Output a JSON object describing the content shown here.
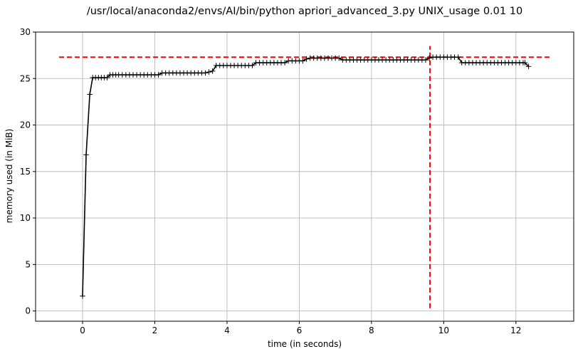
{
  "chart_data": {
    "type": "line",
    "title": "/usr/local/anaconda2/envs/AI/bin/python apriori_advanced_3.py UNIX_usage 0.01 10",
    "xlabel": "time (in seconds)",
    "ylabel": "memory used (in MiB)",
    "xlim": [
      -1.3,
      13.6
    ],
    "ylim": [
      -1.1,
      30
    ],
    "xticks": [
      0,
      2,
      4,
      6,
      8,
      10,
      12
    ],
    "yticks": [
      0,
      5,
      10,
      15,
      20,
      25,
      30
    ],
    "grid": true,
    "series": [
      {
        "marker": "+",
        "color": "#000000",
        "x": [
          0.0,
          0.1,
          0.2,
          0.28,
          0.36,
          0.44,
          0.52,
          0.6,
          0.68,
          0.76,
          0.84,
          0.92,
          1.0,
          1.1,
          1.2,
          1.3,
          1.4,
          1.5,
          1.6,
          1.7,
          1.8,
          1.9,
          2.0,
          2.1,
          2.2,
          2.3,
          2.4,
          2.5,
          2.6,
          2.7,
          2.8,
          2.9,
          3.0,
          3.1,
          3.2,
          3.3,
          3.4,
          3.5,
          3.6,
          3.7,
          3.8,
          3.9,
          4.0,
          4.1,
          4.2,
          4.3,
          4.4,
          4.5,
          4.6,
          4.7,
          4.8,
          4.9,
          5.0,
          5.1,
          5.2,
          5.3,
          5.4,
          5.5,
          5.6,
          5.7,
          5.8,
          5.9,
          6.0,
          6.1,
          6.2,
          6.3,
          6.4,
          6.5,
          6.6,
          6.7,
          6.8,
          6.9,
          7.0,
          7.1,
          7.2,
          7.3,
          7.4,
          7.5,
          7.6,
          7.7,
          7.8,
          7.9,
          8.0,
          8.1,
          8.2,
          8.3,
          8.4,
          8.5,
          8.6,
          8.7,
          8.8,
          8.9,
          9.0,
          9.1,
          9.2,
          9.3,
          9.4,
          9.5,
          9.6,
          9.7,
          9.8,
          9.9,
          10.0,
          10.1,
          10.2,
          10.3,
          10.4,
          10.5,
          10.6,
          10.7,
          10.8,
          10.9,
          11.0,
          11.1,
          11.2,
          11.3,
          11.4,
          11.5,
          11.6,
          11.7,
          11.8,
          11.9,
          12.0,
          12.1,
          12.2,
          12.25,
          12.35
        ],
        "y": [
          1.6,
          16.8,
          23.3,
          25.1,
          25.1,
          25.1,
          25.1,
          25.1,
          25.1,
          25.4,
          25.4,
          25.4,
          25.4,
          25.4,
          25.4,
          25.4,
          25.4,
          25.4,
          25.4,
          25.4,
          25.4,
          25.4,
          25.4,
          25.4,
          25.6,
          25.6,
          25.6,
          25.6,
          25.6,
          25.6,
          25.6,
          25.6,
          25.6,
          25.6,
          25.6,
          25.6,
          25.6,
          25.7,
          25.8,
          26.4,
          26.4,
          26.4,
          26.4,
          26.4,
          26.4,
          26.4,
          26.4,
          26.4,
          26.4,
          26.4,
          26.7,
          26.7,
          26.7,
          26.7,
          26.7,
          26.7,
          26.7,
          26.7,
          26.7,
          26.9,
          26.9,
          26.9,
          26.9,
          26.9,
          27.1,
          27.2,
          27.2,
          27.2,
          27.2,
          27.2,
          27.2,
          27.2,
          27.2,
          27.2,
          27.0,
          27.0,
          27.0,
          27.0,
          27.0,
          27.0,
          27.0,
          27.0,
          27.0,
          27.0,
          27.0,
          27.0,
          27.0,
          27.0,
          27.0,
          27.0,
          27.0,
          27.0,
          27.0,
          27.0,
          27.0,
          27.0,
          27.0,
          27.0,
          27.2,
          27.3,
          27.3,
          27.3,
          27.3,
          27.3,
          27.3,
          27.3,
          27.3,
          26.7,
          26.7,
          26.7,
          26.7,
          26.7,
          26.7,
          26.7,
          26.7,
          26.7,
          26.7,
          26.7,
          26.7,
          26.7,
          26.7,
          26.7,
          26.7,
          26.7,
          26.7,
          26.7,
          26.3
        ]
      }
    ],
    "reference_lines": [
      {
        "orientation": "horizontal",
        "y": 27.3,
        "x_from": -0.65,
        "x_to": 12.95,
        "color": "#ff0000",
        "style": "dashed"
      },
      {
        "orientation": "vertical",
        "x": 9.62,
        "y_from": 0.3,
        "y_to": 28.5,
        "color": "#ff0000",
        "style": "dashed"
      }
    ]
  }
}
